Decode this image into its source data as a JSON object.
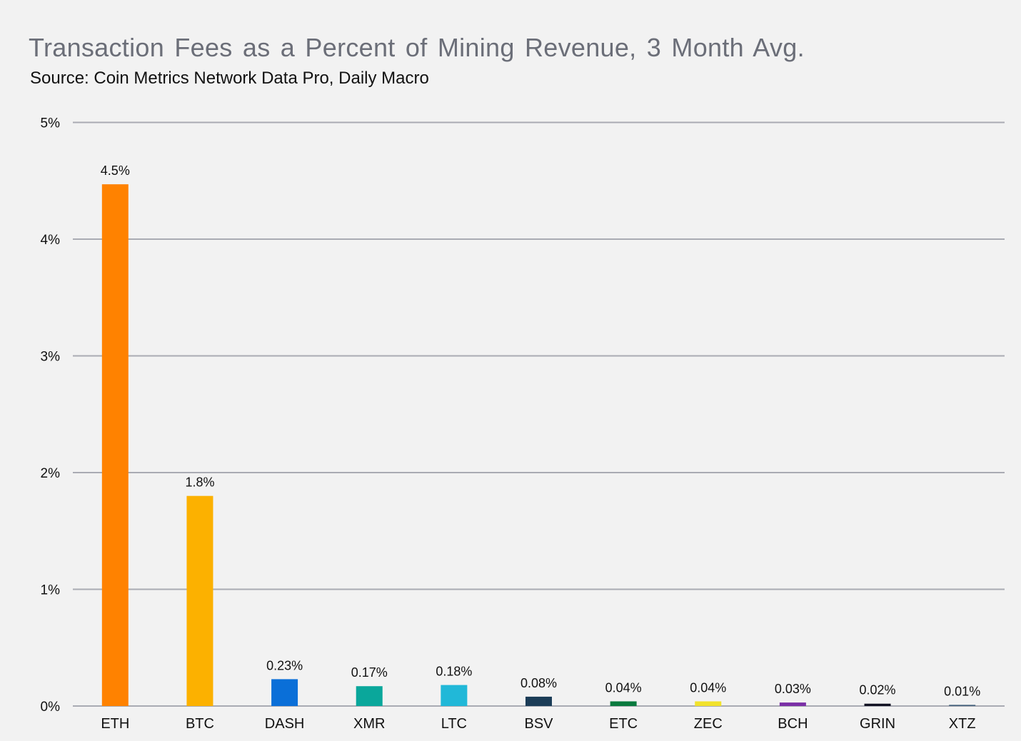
{
  "chart_data": {
    "type": "bar",
    "title": "Transaction Fees as a Percent of Mining Revenue, 3 Month Avg.",
    "subtitle": "Source: Coin Metrics Network Data Pro, Daily Macro",
    "xlabel": "",
    "ylabel": "",
    "ylim": [
      0,
      5
    ],
    "yticks": [
      0,
      1,
      2,
      3,
      4,
      5
    ],
    "ytick_labels": [
      "0%",
      "1%",
      "2%",
      "3%",
      "4%",
      "5%"
    ],
    "grid": true,
    "legend": "none",
    "categories": [
      "ETH",
      "BTC",
      "DASH",
      "XMR",
      "LTC",
      "BSV",
      "ETC",
      "ZEC",
      "BCH",
      "GRIN",
      "XTZ"
    ],
    "values": [
      4.47,
      1.8,
      0.23,
      0.17,
      0.18,
      0.08,
      0.04,
      0.04,
      0.03,
      0.02,
      0.01
    ],
    "data_labels": [
      "4.5%",
      "1.8%",
      "0.23%",
      "0.17%",
      "0.18%",
      "0.08%",
      "0.04%",
      "0.04%",
      "0.03%",
      "0.02%",
      "0.01%"
    ],
    "colors": [
      "#ff8200",
      "#fcb100",
      "#0a6fd8",
      "#0aa79b",
      "#21b8d8",
      "#1b3c57",
      "#0a7a3e",
      "#f1e22b",
      "#7b2fa6",
      "#111122",
      "#44607c"
    ],
    "grid_color": "#a9abb3",
    "axis_color": "#a9abb3"
  }
}
